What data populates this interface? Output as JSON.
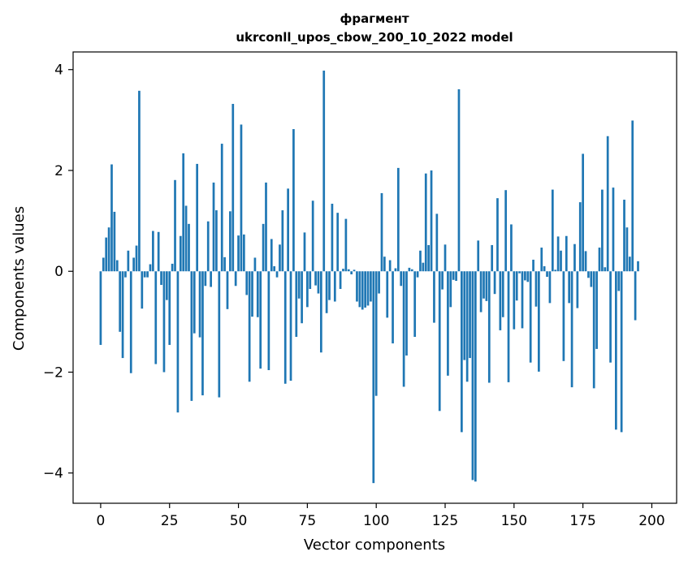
{
  "chart_data": {
    "type": "bar",
    "title_line1": "фрагмент",
    "title_line2": "ukrconll_upos_cbow_200_10_2022 model",
    "xlabel": "Vector components",
    "ylabel": "Components values",
    "xlim": [
      -10,
      209
    ],
    "ylim": [
      -4.6,
      4.35
    ],
    "xticks": [
      0,
      25,
      50,
      75,
      100,
      125,
      150,
      175,
      200
    ],
    "yticks": [
      -4,
      -2,
      0,
      2,
      4
    ],
    "ytick_labels": [
      "−4",
      "−2",
      "0",
      "2",
      "4"
    ],
    "bar_color": "#1f77b4",
    "grid": false,
    "values": [
      -1.46,
      0.27,
      0.67,
      0.87,
      2.12,
      1.18,
      0.22,
      -1.2,
      -1.72,
      -0.12,
      0.41,
      -2.02,
      0.27,
      0.51,
      3.58,
      -0.74,
      -0.12,
      -0.12,
      0.14,
      0.8,
      -1.84,
      0.78,
      -0.27,
      -2.0,
      -0.57,
      -1.46,
      0.15,
      1.81,
      -2.8,
      0.7,
      2.34,
      1.3,
      0.94,
      -2.57,
      -1.23,
      2.13,
      -1.31,
      -2.46,
      -0.29,
      0.99,
      -0.31,
      1.76,
      1.21,
      -2.5,
      2.53,
      0.28,
      -0.75,
      1.19,
      3.32,
      -0.29,
      0.71,
      2.91,
      0.73,
      -0.47,
      -2.19,
      -0.9,
      0.27,
      -0.91,
      -1.93,
      0.94,
      1.76,
      -1.96,
      0.64,
      0.1,
      -0.12,
      0.53,
      1.21,
      -2.23,
      1.64,
      -2.17,
      2.82,
      -1.3,
      -0.54,
      -1.03,
      0.77,
      -0.71,
      -0.35,
      1.4,
      -0.28,
      -0.44,
      -1.61,
      3.98,
      -0.83,
      -0.57,
      1.34,
      -0.6,
      1.16,
      -0.35,
      0.05,
      1.04,
      0.04,
      -0.06,
      0.03,
      -0.6,
      -0.71,
      -0.76,
      -0.72,
      -0.68,
      -0.6,
      -4.2,
      -2.47,
      -0.44,
      1.55,
      0.29,
      -0.92,
      0.22,
      -1.43,
      0.06,
      2.05,
      -0.29,
      -2.29,
      -1.67,
      0.07,
      0.04,
      -1.3,
      -0.12,
      0.41,
      0.17,
      1.94,
      0.52,
      2.0,
      -1.02,
      1.14,
      -2.77,
      -0.36,
      0.53,
      -2.07,
      -0.71,
      -0.17,
      -0.19,
      3.61,
      -3.19,
      -1.76,
      -2.19,
      -1.72,
      -4.14,
      -4.17,
      0.61,
      -0.81,
      -0.54,
      -0.59,
      -2.21,
      0.52,
      -0.45,
      1.45,
      -1.17,
      -0.91,
      1.61,
      -2.2,
      0.93,
      -1.15,
      -0.58,
      -0.04,
      -1.13,
      -0.18,
      -0.21,
      -1.81,
      0.23,
      -0.7,
      -1.99,
      0.47,
      0.1,
      -0.11,
      -0.63,
      1.62,
      0.03,
      0.69,
      0.41,
      -1.78,
      0.7,
      -0.63,
      -2.3,
      0.54,
      -0.73,
      1.37,
      2.33,
      0.4,
      -0.13,
      -0.31,
      -2.32,
      -1.54,
      0.47,
      1.62,
      0.08,
      2.68,
      -1.81,
      1.66,
      -3.14,
      -0.39,
      -3.19,
      1.42,
      0.87,
      0.29,
      2.99,
      -0.97,
      0.2
    ]
  }
}
